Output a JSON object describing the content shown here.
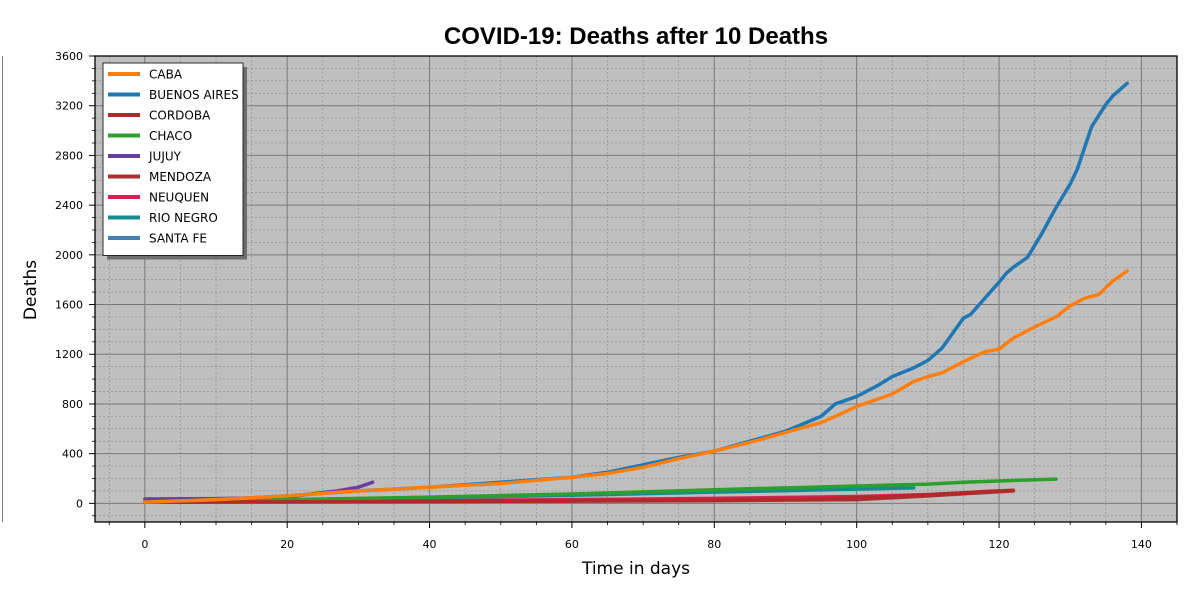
{
  "chart_data": {
    "type": "line",
    "title": "COVID-19: Deaths after 10 Deaths",
    "xlabel": "Time in days",
    "ylabel": "Deaths",
    "xlim": [
      -7,
      145
    ],
    "ylim": [
      -150,
      3600
    ],
    "xticks": [
      0,
      20,
      40,
      60,
      80,
      100,
      120,
      140
    ],
    "yticks": [
      0,
      400,
      800,
      1200,
      1600,
      2000,
      2400,
      2800,
      3200,
      3600
    ],
    "grid": true,
    "legend_position": "top-left",
    "background": "#bfbfbf",
    "series": [
      {
        "name": "CABA",
        "color": "#ff7f0e",
        "x": [
          0,
          10,
          20,
          30,
          40,
          50,
          60,
          65,
          70,
          75,
          80,
          85,
          90,
          95,
          97,
          100,
          103,
          105,
          108,
          110,
          112,
          115,
          118,
          120,
          122,
          125,
          128,
          130,
          132,
          134,
          136,
          138
        ],
        "y": [
          10,
          30,
          60,
          100,
          130,
          160,
          210,
          240,
          290,
          360,
          420,
          490,
          570,
          650,
          700,
          780,
          840,
          880,
          980,
          1020,
          1050,
          1140,
          1220,
          1240,
          1330,
          1420,
          1500,
          1590,
          1650,
          1680,
          1790,
          1870
        ]
      },
      {
        "name": "BUENOS AIRES",
        "color": "#1f77b4",
        "x": [
          0,
          10,
          20,
          30,
          40,
          50,
          60,
          65,
          70,
          75,
          80,
          85,
          90,
          95,
          97,
          100,
          103,
          105,
          108,
          110,
          112,
          114,
          115,
          116,
          118,
          120,
          121,
          122,
          124,
          126,
          128,
          130,
          131,
          133,
          135,
          136,
          138
        ],
        "y": [
          10,
          30,
          60,
          100,
          130,
          170,
          210,
          250,
          310,
          370,
          420,
          500,
          580,
          700,
          800,
          860,
          950,
          1020,
          1090,
          1150,
          1250,
          1410,
          1490,
          1520,
          1650,
          1780,
          1850,
          1900,
          1980,
          2170,
          2380,
          2570,
          2690,
          3030,
          3210,
          3280,
          3380
        ]
      },
      {
        "name": "CORDOBA",
        "color": "#b2282b",
        "x": [
          0,
          20,
          40,
          60,
          80,
          95,
          100,
          105,
          110,
          115,
          118,
          120,
          122
        ],
        "y": [
          10,
          12,
          15,
          20,
          25,
          35,
          45,
          55,
          70,
          85,
          95,
          100,
          105
        ]
      },
      {
        "name": "CHACO",
        "color": "#2ca02c",
        "x": [
          0,
          20,
          40,
          60,
          80,
          100,
          110,
          115,
          120,
          125,
          128
        ],
        "y": [
          10,
          30,
          50,
          75,
          110,
          140,
          155,
          170,
          180,
          190,
          195
        ]
      },
      {
        "name": "JUJUY",
        "color": "#6b3fa0",
        "x": [
          0,
          10,
          20,
          24,
          27,
          30,
          32
        ],
        "y": [
          35,
          38,
          50,
          80,
          100,
          130,
          170
        ]
      },
      {
        "name": "MENDOZA",
        "color": "#a83232",
        "x": [
          0,
          20,
          40,
          60,
          80,
          100,
          110,
          122
        ],
        "y": [
          10,
          12,
          15,
          18,
          22,
          30,
          60,
          100
        ]
      },
      {
        "name": "NEUQUEN",
        "color": "#d62050",
        "x": [
          0,
          20,
          40,
          60,
          80,
          100,
          110
        ],
        "y": [
          10,
          15,
          20,
          30,
          40,
          55,
          70
        ]
      },
      {
        "name": "RIO NEGRO",
        "color": "#148c8c",
        "x": [
          0,
          20,
          40,
          60,
          80,
          100,
          108
        ],
        "y": [
          10,
          25,
          45,
          65,
          90,
          115,
          125
        ]
      },
      {
        "name": "SANTA FE",
        "color": "#4682b4",
        "x": [
          0,
          10,
          20,
          26
        ],
        "y": [
          10,
          15,
          20,
          25
        ]
      }
    ]
  }
}
